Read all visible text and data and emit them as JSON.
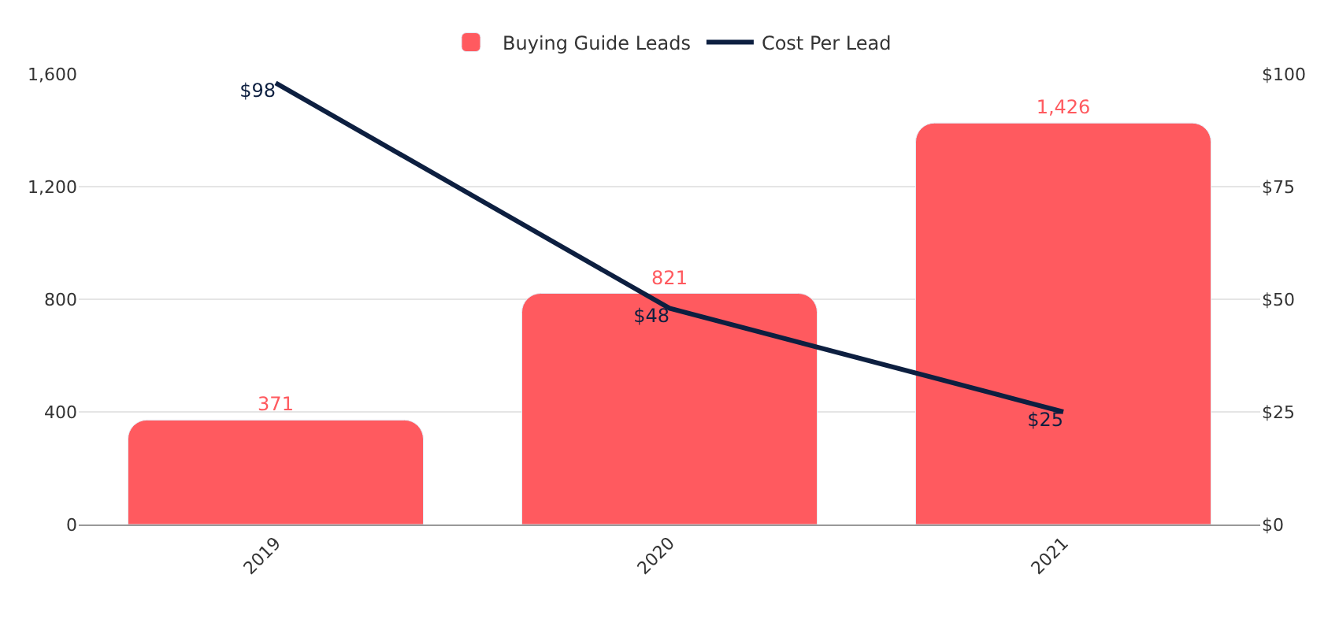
{
  "chart_data": {
    "type": "bar",
    "categories": [
      "2019",
      "2020",
      "2021"
    ],
    "series": [
      {
        "name": "Buying Guide Leads",
        "color": "#ff5a5f",
        "values": [
          371,
          821,
          1426
        ],
        "value_labels": [
          "371",
          "821",
          "1,426"
        ]
      },
      {
        "name": "Cost Per Lead",
        "type": "line",
        "axis": "y2",
        "color": "#0d1f40",
        "values": [
          98,
          48,
          25
        ],
        "value_labels": [
          "$98",
          "$48",
          "$25"
        ]
      }
    ],
    "ylim": [
      0,
      1600
    ],
    "yticks": [
      0,
      400,
      800,
      {
        "value": 1200,
        "label": "1,200"
      },
      {
        "value": 1600,
        "label": "1,600"
      }
    ],
    "y2lim": [
      0,
      100
    ],
    "y2ticks": [
      {
        "value": 0,
        "label": "$0"
      },
      {
        "value": 25,
        "label": "$25"
      },
      {
        "value": 50,
        "label": "$50"
      },
      {
        "value": 75,
        "label": "$75"
      },
      {
        "value": 100,
        "label": "$100"
      }
    ],
    "grid": "y",
    "legend": "top",
    "marker": "none",
    "line_style": "solid"
  }
}
